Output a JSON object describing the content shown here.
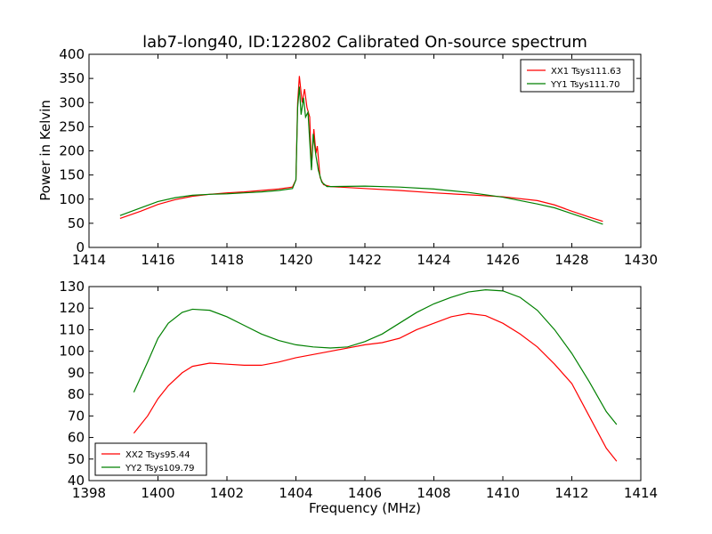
{
  "title": "lab7-long40, ID:122802 Calibrated On-source spectrum",
  "xlabel": "Frequency (MHz)",
  "ylabel": "Power in Kelvin",
  "chart_data": [
    {
      "type": "line",
      "xlim": [
        1414,
        1430
      ],
      "ylim": [
        0,
        400
      ],
      "x_ticks": [
        1414,
        1416,
        1418,
        1420,
        1422,
        1424,
        1426,
        1428,
        1430
      ],
      "y_ticks": [
        0,
        50,
        100,
        150,
        200,
        250,
        300,
        350,
        400
      ],
      "legend_position": "top-right",
      "ylabel": "Power in Kelvin",
      "series": [
        {
          "name": "XX1 Tsys111.63",
          "color": "#ff0000",
          "points": [
            [
              1414.9,
              60
            ],
            [
              1415.5,
              75
            ],
            [
              1416,
              89
            ],
            [
              1416.5,
              99
            ],
            [
              1417,
              106
            ],
            [
              1417.5,
              110
            ],
            [
              1418,
              113
            ],
            [
              1418.5,
              115
            ],
            [
              1419,
              118
            ],
            [
              1419.5,
              121
            ],
            [
              1419.9,
              125
            ],
            [
              1420.0,
              140
            ],
            [
              1420.05,
              300
            ],
            [
              1420.1,
              355
            ],
            [
              1420.18,
              300
            ],
            [
              1420.25,
              328
            ],
            [
              1420.32,
              290
            ],
            [
              1420.4,
              270
            ],
            [
              1420.45,
              165
            ],
            [
              1420.52,
              245
            ],
            [
              1420.58,
              195
            ],
            [
              1420.62,
              210
            ],
            [
              1420.7,
              145
            ],
            [
              1420.8,
              130
            ],
            [
              1421,
              126
            ],
            [
              1422,
              122
            ],
            [
              1423,
              118
            ],
            [
              1424,
              113
            ],
            [
              1425,
              109
            ],
            [
              1426,
              105
            ],
            [
              1427,
              97
            ],
            [
              1427.5,
              88
            ],
            [
              1428,
              75
            ],
            [
              1428.5,
              63
            ],
            [
              1428.9,
              54
            ]
          ]
        },
        {
          "name": "YY1 Tsys111.70",
          "color": "#008000",
          "points": [
            [
              1414.9,
              66
            ],
            [
              1415.5,
              82
            ],
            [
              1416,
              95
            ],
            [
              1416.5,
              103
            ],
            [
              1417,
              108
            ],
            [
              1417.5,
              110
            ],
            [
              1418,
              111
            ],
            [
              1418.5,
              113
            ],
            [
              1419,
              115
            ],
            [
              1419.5,
              118
            ],
            [
              1419.9,
              122
            ],
            [
              1420.0,
              140
            ],
            [
              1420.05,
              290
            ],
            [
              1420.1,
              333
            ],
            [
              1420.15,
              275
            ],
            [
              1420.22,
              310
            ],
            [
              1420.28,
              270
            ],
            [
              1420.35,
              280
            ],
            [
              1420.45,
              160
            ],
            [
              1420.5,
              235
            ],
            [
              1420.58,
              190
            ],
            [
              1420.65,
              160
            ],
            [
              1420.75,
              135
            ],
            [
              1420.9,
              126
            ],
            [
              1421,
              126
            ],
            [
              1422,
              127
            ],
            [
              1423,
              125
            ],
            [
              1424,
              121
            ],
            [
              1425,
              114
            ],
            [
              1426,
              104
            ],
            [
              1427,
              90
            ],
            [
              1427.5,
              82
            ],
            [
              1428,
              70
            ],
            [
              1428.5,
              58
            ],
            [
              1428.9,
              48
            ]
          ]
        }
      ]
    },
    {
      "type": "line",
      "xlim": [
        1398,
        1414
      ],
      "ylim": [
        40,
        130
      ],
      "x_ticks": [
        1398,
        1400,
        1402,
        1404,
        1406,
        1408,
        1410,
        1412,
        1414
      ],
      "y_ticks": [
        40,
        50,
        60,
        70,
        80,
        90,
        100,
        110,
        120,
        130
      ],
      "legend_position": "bottom-left",
      "xlabel": "Frequency (MHz)",
      "series": [
        {
          "name": "XX2 Tsys95.44",
          "color": "#ff0000",
          "points": [
            [
              1399.3,
              62
            ],
            [
              1399.7,
              70
            ],
            [
              1400,
              78
            ],
            [
              1400.3,
              84
            ],
            [
              1400.7,
              90
            ],
            [
              1401,
              93
            ],
            [
              1401.5,
              94.5
            ],
            [
              1402,
              94
            ],
            [
              1402.5,
              93.5
            ],
            [
              1403,
              93.5
            ],
            [
              1403.5,
              95
            ],
            [
              1404,
              97
            ],
            [
              1404.5,
              98.5
            ],
            [
              1405,
              100
            ],
            [
              1405.5,
              101.5
            ],
            [
              1406,
              103
            ],
            [
              1406.5,
              104
            ],
            [
              1407,
              106
            ],
            [
              1407.5,
              110
            ],
            [
              1408,
              113
            ],
            [
              1408.5,
              116
            ],
            [
              1409,
              117.5
            ],
            [
              1409.5,
              116.5
            ],
            [
              1410,
              113
            ],
            [
              1410.5,
              108
            ],
            [
              1411,
              102
            ],
            [
              1411.5,
              94
            ],
            [
              1412,
              85
            ],
            [
              1412.5,
              70
            ],
            [
              1413,
              55
            ],
            [
              1413.3,
              49
            ]
          ]
        },
        {
          "name": "YY2 Tsys109.79",
          "color": "#008000",
          "points": [
            [
              1399.3,
              81
            ],
            [
              1399.7,
              95
            ],
            [
              1400,
              106
            ],
            [
              1400.3,
              113
            ],
            [
              1400.7,
              118
            ],
            [
              1401,
              119.5
            ],
            [
              1401.5,
              119
            ],
            [
              1402,
              116
            ],
            [
              1402.5,
              112
            ],
            [
              1403,
              108
            ],
            [
              1403.5,
              105
            ],
            [
              1404,
              103
            ],
            [
              1404.5,
              102
            ],
            [
              1405,
              101.5
            ],
            [
              1405.5,
              102
            ],
            [
              1406,
              104.5
            ],
            [
              1406.5,
              108
            ],
            [
              1407,
              113
            ],
            [
              1407.5,
              118
            ],
            [
              1408,
              122
            ],
            [
              1408.5,
              125
            ],
            [
              1409,
              127.5
            ],
            [
              1409.5,
              128.5
            ],
            [
              1410,
              128
            ],
            [
              1410.5,
              125
            ],
            [
              1411,
              119
            ],
            [
              1411.5,
              110
            ],
            [
              1412,
              99
            ],
            [
              1412.5,
              86
            ],
            [
              1413,
              72
            ],
            [
              1413.3,
              66
            ]
          ]
        }
      ]
    }
  ]
}
